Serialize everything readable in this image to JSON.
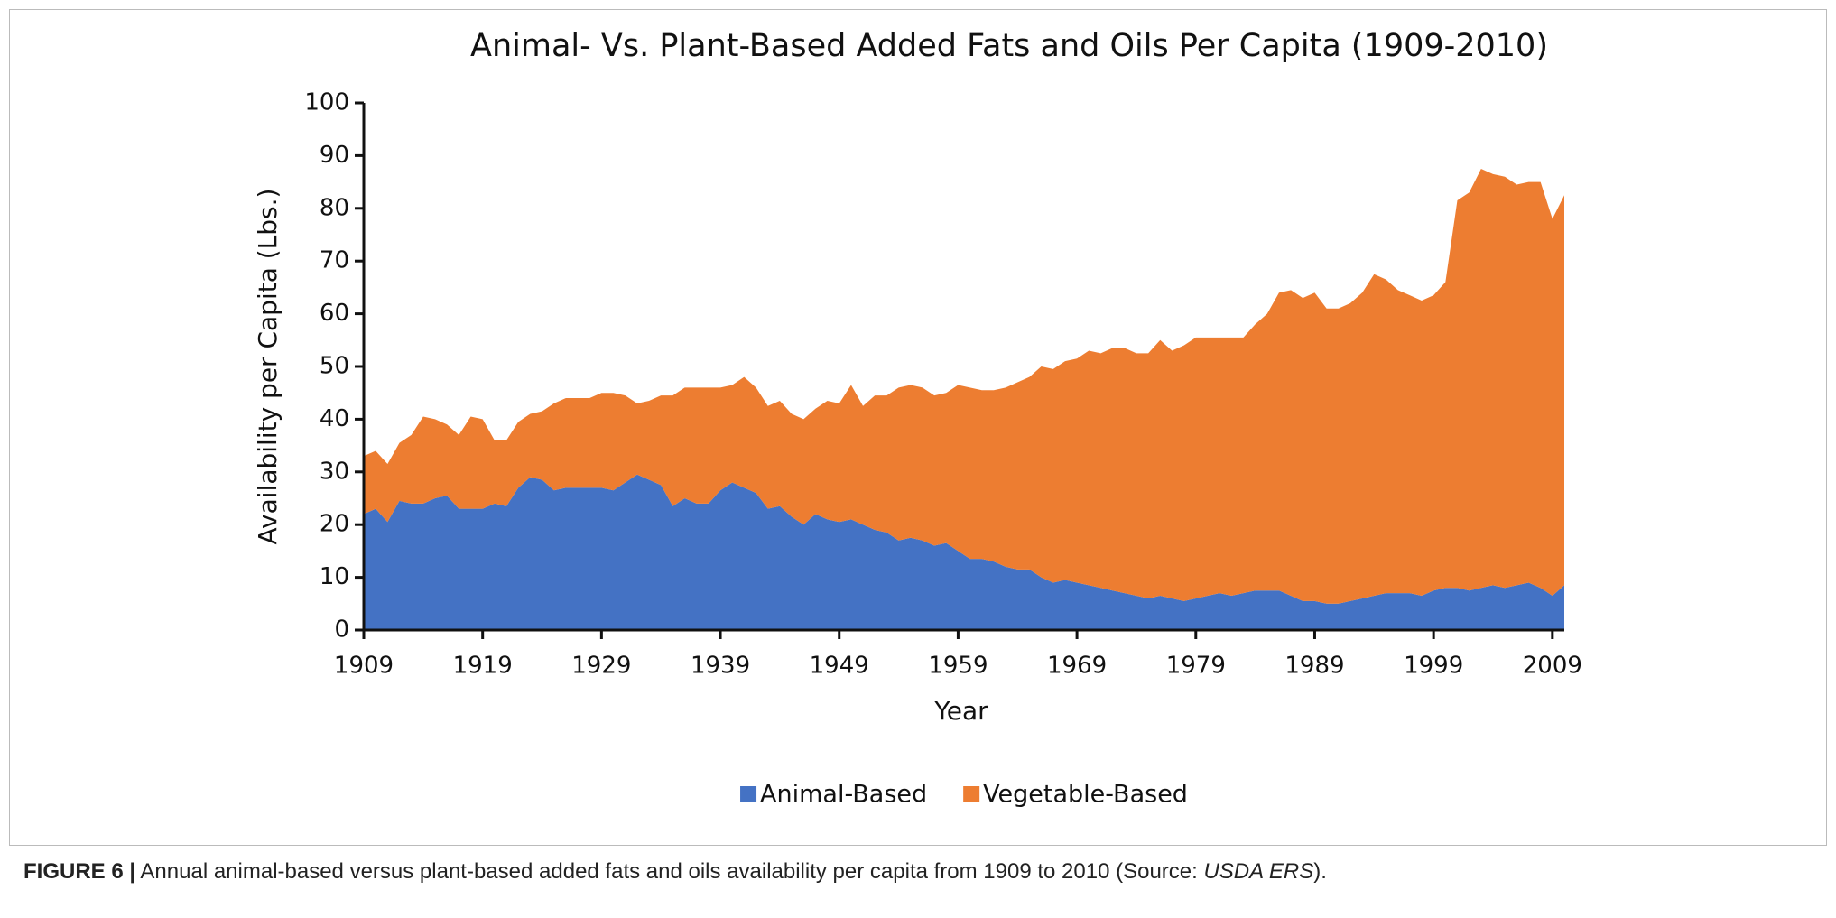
{
  "chart_data": {
    "type": "stacked_area",
    "title": "Animal- Vs. Plant-Based Added Fats and Oils Per Capita (1909-2010)",
    "x_label": "Year",
    "y_label": "Availability per Capita (Lbs.)",
    "x": [
      1909,
      1910,
      1911,
      1912,
      1913,
      1914,
      1915,
      1916,
      1917,
      1918,
      1919,
      1920,
      1921,
      1922,
      1923,
      1924,
      1925,
      1926,
      1927,
      1928,
      1929,
      1930,
      1931,
      1932,
      1933,
      1934,
      1935,
      1936,
      1937,
      1938,
      1939,
      1940,
      1941,
      1942,
      1943,
      1944,
      1945,
      1946,
      1947,
      1948,
      1949,
      1950,
      1951,
      1952,
      1953,
      1954,
      1955,
      1956,
      1957,
      1958,
      1959,
      1960,
      1961,
      1962,
      1963,
      1964,
      1965,
      1966,
      1967,
      1968,
      1969,
      1970,
      1971,
      1972,
      1973,
      1974,
      1975,
      1976,
      1977,
      1978,
      1979,
      1980,
      1981,
      1982,
      1983,
      1984,
      1985,
      1986,
      1987,
      1988,
      1989,
      1990,
      1991,
      1992,
      1993,
      1994,
      1995,
      1996,
      1997,
      1998,
      1999,
      2000,
      2001,
      2002,
      2003,
      2004,
      2005,
      2006,
      2007,
      2008,
      2009,
      2010
    ],
    "series": [
      {
        "name": "Animal-Based",
        "color": "#4472c4",
        "values": [
          22,
          23,
          20.5,
          24.5,
          24,
          24,
          25,
          25.5,
          23,
          23,
          23,
          24,
          23.5,
          27,
          29,
          28.5,
          26.5,
          27,
          27,
          27,
          27,
          26.5,
          28,
          29.5,
          28.5,
          27.5,
          23.5,
          25,
          24,
          24,
          26.5,
          28,
          27,
          26,
          23,
          23.5,
          21.5,
          20,
          22,
          21,
          20.5,
          21,
          20,
          19,
          18.5,
          17,
          17.5,
          17,
          16,
          16.5,
          15,
          13.5,
          13.5,
          13,
          12,
          11.5,
          11.5,
          10,
          9,
          9.5,
          9,
          8.5,
          8,
          7.5,
          7,
          6.5,
          6,
          6.5,
          6,
          5.5,
          6,
          6.5,
          7,
          6.5,
          7,
          7.5,
          7.5,
          7.5,
          6.5,
          5.5,
          5.5,
          5,
          5,
          5.5,
          6,
          6.5,
          7,
          7,
          7,
          6.5,
          7.5,
          8,
          8,
          7.5,
          8,
          8.5,
          8,
          8.5,
          9,
          8,
          6.5,
          8.5
        ]
      },
      {
        "name": "Vegetable-Based",
        "color": "#ed7d31",
        "values": [
          11,
          11,
          11,
          11,
          13,
          16.5,
          15,
          13.5,
          14,
          17.5,
          17,
          12,
          12.5,
          12.5,
          12,
          13,
          16.5,
          17,
          17,
          17,
          18,
          18.5,
          16.5,
          13.5,
          15,
          17,
          21,
          21,
          22,
          22,
          19.5,
          18.5,
          21,
          20,
          19.5,
          20,
          19.5,
          20,
          20,
          22.5,
          22.5,
          25.5,
          22.5,
          25.5,
          26,
          29,
          29,
          29,
          28.5,
          28.5,
          31.5,
          32.5,
          32,
          32.5,
          34,
          35.5,
          36.5,
          40,
          40.5,
          41.5,
          42.5,
          44.5,
          44.5,
          46,
          46.5,
          46,
          46.5,
          48.5,
          47,
          48.5,
          49.5,
          49,
          48.5,
          49,
          48.5,
          50.5,
          52.5,
          56.5,
          58,
          57.5,
          58.5,
          56,
          56,
          56.5,
          58,
          61,
          59.5,
          57.5,
          56.5,
          56,
          56,
          58,
          73.5,
          75.5,
          79.5,
          78,
          78,
          76,
          76,
          77,
          71.5,
          74
        ]
      }
    ],
    "xlim": [
      1909,
      2010
    ],
    "xticks": [
      1909,
      1919,
      1929,
      1939,
      1949,
      1959,
      1969,
      1979,
      1989,
      1999,
      2009
    ],
    "ylim": [
      0,
      100
    ],
    "yticks": [
      0,
      10,
      20,
      30,
      40,
      50,
      60,
      70,
      80,
      90,
      100
    ],
    "legend": "bottom",
    "grid": false
  },
  "caption": {
    "label": "FIGURE 6 |",
    "text_before": " Annual animal-based versus plant-based added fats and oils availability per capita from 1909 to 2010 (Source: ",
    "source": "USDA ERS",
    "text_after": ")."
  }
}
